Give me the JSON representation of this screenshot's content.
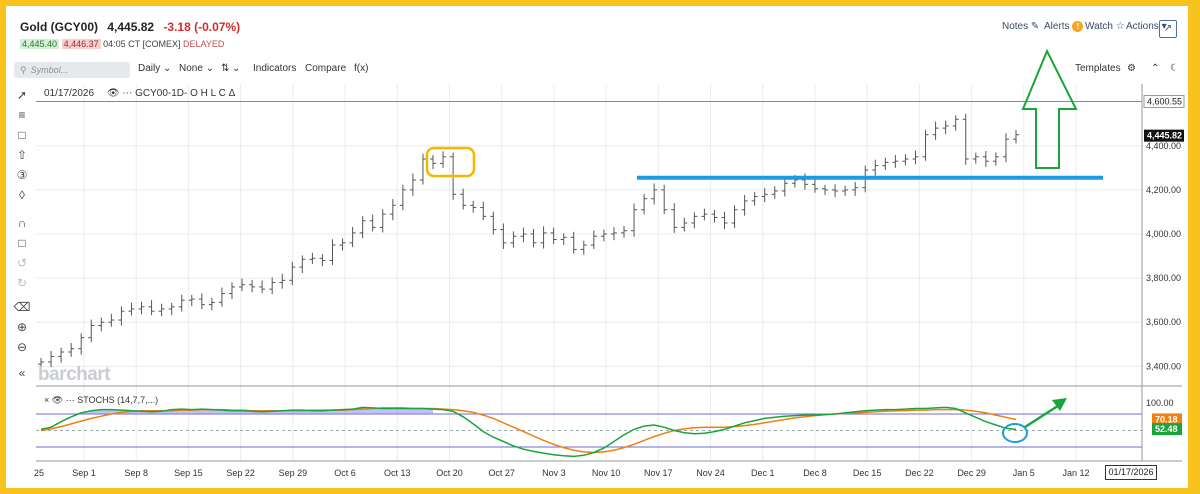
{
  "header": {
    "title": "Gold (GCY00)",
    "price": "4,445.82",
    "change": "-3.18 (-0.07%)",
    "bid": "4,445.40",
    "ask": "4,446.37",
    "time": "04:05 CT [COMEX]",
    "status": "DELAYED"
  },
  "top_right": {
    "notes": "Notes",
    "alerts": "Alerts",
    "watch": "Watch",
    "actions": "Actions"
  },
  "toolbar": {
    "search_placeholder": "Symbol...",
    "period": "Daily",
    "overlay": "None",
    "indicators": "Indicators",
    "compare": "Compare",
    "fx": "f(x)",
    "templates": "Templates"
  },
  "chart_info": {
    "date": "01/17/2026",
    "symbol_line": "GCY00-1D- O H L C Δ",
    "stoch_line": "STOCHS (14,7,7,...)"
  },
  "watermark": "barchart",
  "date_flag": "01/17/2026",
  "colors": {
    "frame": "#f7c31c",
    "price_bars": "#555555",
    "support_line": "#1e9be0",
    "arrow": "#1aa53a",
    "highlight_box": "#f5b800",
    "stoch_k": "#1aa53a",
    "stoch_d": "#f07f14",
    "stoch_fill": "#8c8cf5",
    "current_price_tag": "#111111"
  },
  "chart_data": [
    {
      "type": "line",
      "title": "Gold (GCY00) Daily OHLC",
      "x_ticks": [
        "Sep 1",
        "Sep 8",
        "Sep 15",
        "Sep 22",
        "Sep 29",
        "Oct 6",
        "Oct 13",
        "Oct 20",
        "Oct 27",
        "Nov 3",
        "Nov 10",
        "Nov 17",
        "Nov 24",
        "Dec 1",
        "Dec 8",
        "Dec 15",
        "Dec 22",
        "Dec 29",
        "Jan 5",
        "Jan 12"
      ],
      "x_ticks_extra": [
        "25"
      ],
      "y_ticks": [
        "4,400.00",
        "4,200.00",
        "4,000.00",
        "3,800.00",
        "3,600.00",
        "3,400.00"
      ],
      "ylim": [
        3320,
        4680
      ],
      "reference_levels": {
        "high_line": "4,600.55",
        "last_price": "4,445.82",
        "support_level": 4255
      },
      "series": [
        {
          "close": [
            3420,
            3445,
            3465,
            3480,
            3530,
            3585,
            3600,
            3610,
            3650,
            3660,
            3670,
            3650,
            3660,
            3670,
            3700,
            3705,
            3680,
            3690,
            3730,
            3760,
            3770,
            3760,
            3750,
            3780,
            3790,
            3850,
            3885,
            3890,
            3880,
            3950,
            3960,
            4005,
            4060,
            4030,
            4090,
            4130,
            4200,
            4245,
            4340,
            4320,
            4350,
            4180,
            4130,
            4120,
            4080,
            4020,
            3960,
            3990,
            4000,
            3960,
            4005,
            3975,
            3985,
            3930,
            3950,
            3990,
            4000,
            4005,
            4015,
            4110,
            4160,
            4200,
            4110,
            4030,
            4050,
            4080,
            4090,
            4075,
            4050,
            4110,
            4150,
            4170,
            4180,
            4195,
            4230,
            4245,
            4225,
            4205,
            4200,
            4195,
            4200,
            4210,
            4290,
            4310,
            4325,
            4330,
            4340,
            4350,
            4450,
            4480,
            4490,
            4520,
            4340,
            4350,
            4330,
            4350,
            4430,
            4450
          ]
        }
      ]
    },
    {
      "type": "line",
      "title": "STOCHS (14,7,7,...)",
      "y_ticks": [
        "100.00"
      ],
      "ylim": [
        0,
        100
      ],
      "current": {
        "d": "70.18",
        "k": "52.48"
      },
      "series": [
        {
          "name": "%K",
          "values": [
            52,
            56,
            66,
            75,
            82,
            86,
            88,
            88,
            87,
            86,
            85,
            84,
            85,
            88,
            89,
            88,
            89,
            88,
            87,
            86,
            86,
            85,
            84,
            85,
            86,
            87,
            87,
            86,
            86,
            87,
            88,
            89,
            92,
            91,
            90,
            90,
            90,
            90,
            90,
            89,
            88,
            85,
            75,
            62,
            48,
            38,
            30,
            22,
            16,
            12,
            9,
            6,
            4,
            3,
            5,
            10,
            18,
            30,
            42,
            52,
            58,
            60,
            56,
            50,
            46,
            44,
            45,
            48,
            52,
            58,
            64,
            68,
            72,
            74,
            76,
            77,
            78,
            78,
            79,
            80,
            82,
            84,
            86,
            87,
            88,
            88,
            89,
            90,
            90,
            91,
            92,
            90,
            82,
            74,
            66,
            60,
            54,
            52
          ]
        },
        {
          "name": "%D",
          "values": [
            50,
            53,
            57,
            62,
            67,
            72,
            76,
            80,
            83,
            85,
            86,
            86,
            86,
            86,
            87,
            87,
            88,
            88,
            88,
            87,
            87,
            86,
            86,
            86,
            86,
            86,
            86,
            87,
            87,
            87,
            87,
            88,
            89,
            90,
            91,
            91,
            91,
            90,
            90,
            90,
            89,
            88,
            86,
            83,
            78,
            72,
            64,
            56,
            48,
            40,
            32,
            25,
            19,
            14,
            11,
            10,
            11,
            14,
            19,
            25,
            32,
            39,
            45,
            50,
            53,
            55,
            56,
            56,
            56,
            57,
            59,
            61,
            64,
            67,
            70,
            73,
            75,
            77,
            79,
            80,
            81,
            82,
            83,
            84,
            85,
            86,
            86,
            87,
            87,
            88,
            88,
            88,
            87,
            85,
            82,
            78,
            74,
            70
          ]
        }
      ]
    }
  ]
}
